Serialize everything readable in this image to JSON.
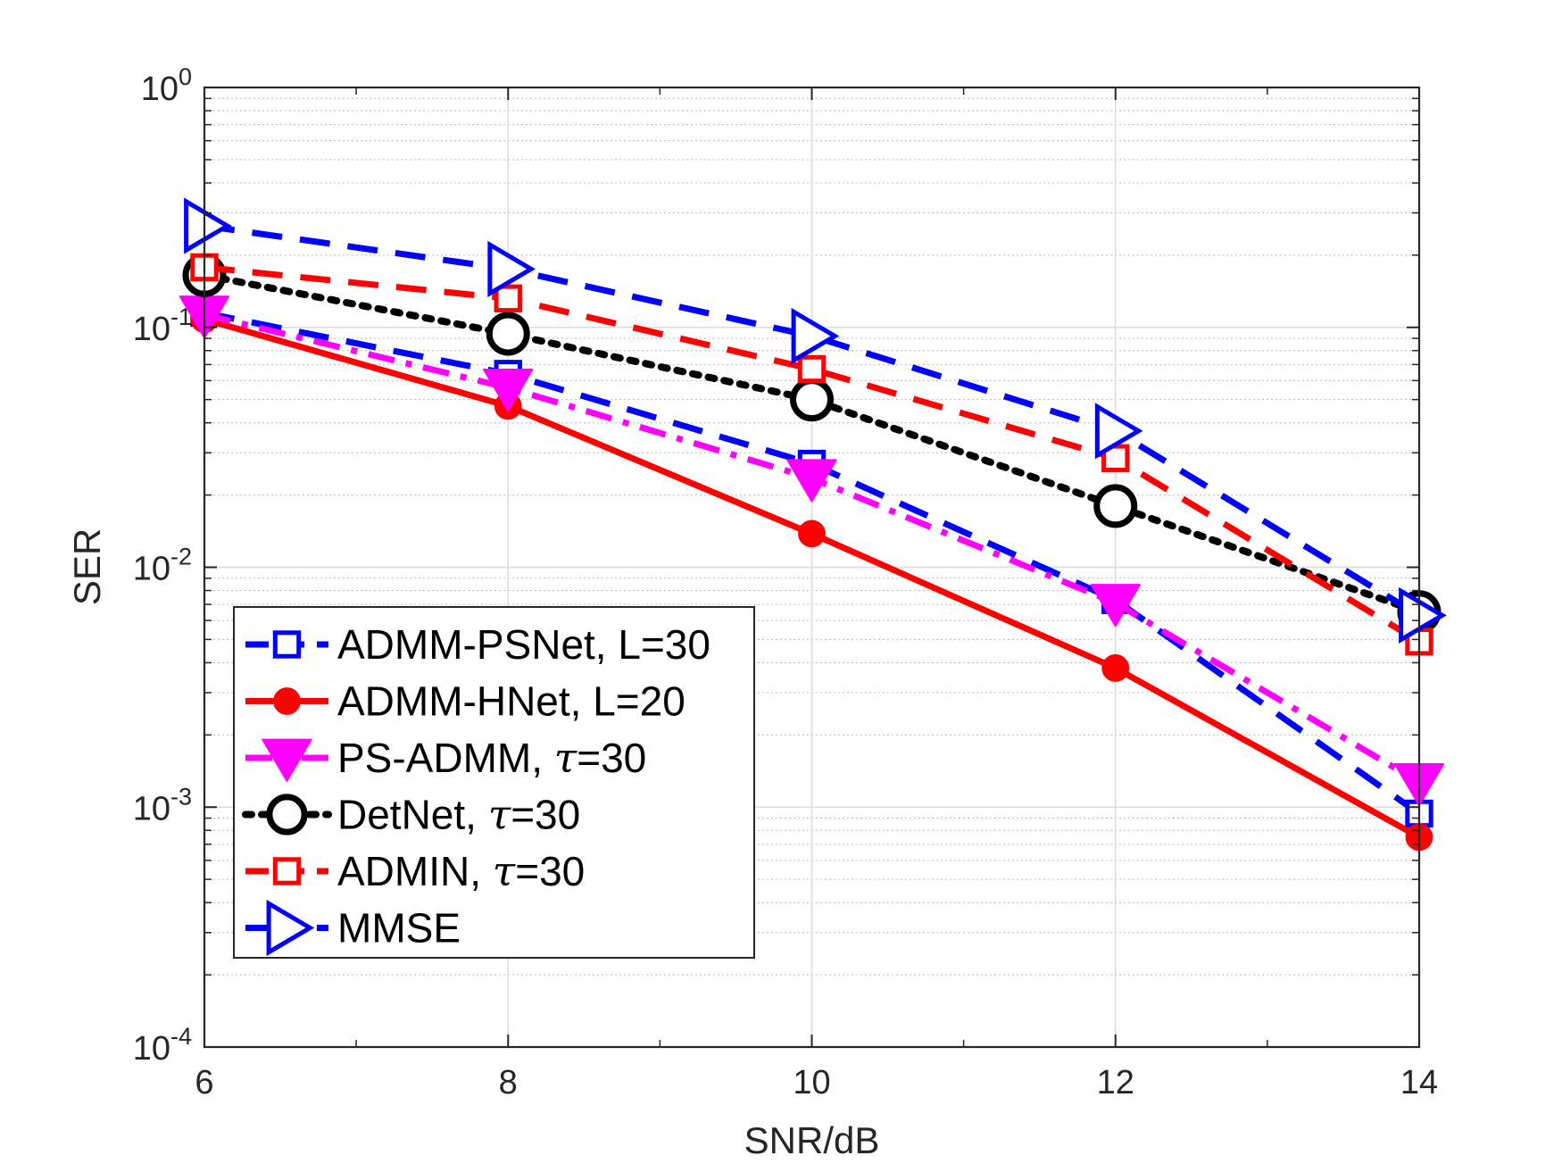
{
  "chart_data": {
    "type": "line",
    "title": "",
    "xlabel": "SNR/dB",
    "ylabel": "SER",
    "xlim": [
      6,
      14
    ],
    "ylim": [
      0.0001,
      1
    ],
    "yscale": "log",
    "grid": true,
    "minor_grid": true,
    "legend_position": "bottom-left",
    "x": [
      6,
      8,
      10,
      12,
      14
    ],
    "x_tick_labels": [
      "6",
      "8",
      "10",
      "12",
      "14"
    ],
    "y_ticks": [
      {
        "value": 1,
        "base": "10",
        "exp": "0"
      },
      {
        "value": 0.1,
        "base": "10",
        "exp": "-1"
      },
      {
        "value": 0.01,
        "base": "10",
        "exp": "-2"
      },
      {
        "value": 0.001,
        "base": "10",
        "exp": "-3"
      },
      {
        "value": 0.0001,
        "base": "10",
        "exp": "-4"
      }
    ],
    "series": [
      {
        "name": "ADMM-PSNet, L=30",
        "label_main": "ADMM-PSNet, L=30",
        "label_sym": "",
        "label_tail": "",
        "color": "#0000FF",
        "dash": "dash",
        "marker": "square-open",
        "values": [
          0.115,
          0.064,
          0.027,
          0.0073,
          0.00094
        ]
      },
      {
        "name": "ADMM-HNet, L=20",
        "label_main": "ADMM-HNet, L=20",
        "label_sym": "",
        "label_tail": "",
        "color": "#FF0000",
        "dash": "solid",
        "marker": "circle-filled",
        "values": [
          0.108,
          0.047,
          0.0138,
          0.0038,
          0.00075
        ]
      },
      {
        "name": "PS-ADMM, τ=30",
        "label_main": "PS-ADMM, ",
        "label_sym": "τ",
        "label_tail": "=30",
        "color": "#FF00FF",
        "dash": "dashdot",
        "marker": "triangle-down-filled",
        "values": [
          0.113,
          0.056,
          0.0235,
          0.0071,
          0.00127
        ]
      },
      {
        "name": "DetNet, τ=30",
        "label_main": "DetNet, ",
        "label_sym": "τ",
        "label_tail": "=30",
        "color": "#000000",
        "dash": "dot",
        "marker": "circle-open",
        "values": [
          0.165,
          0.094,
          0.05,
          0.018,
          0.0065
        ]
      },
      {
        "name": "ADMIN, τ=30",
        "label_main": "ADMIN, ",
        "label_sym": "τ",
        "label_tail": "=30",
        "color": "#FF0000",
        "dash": "dash",
        "marker": "square-open",
        "values": [
          0.178,
          0.132,
          0.067,
          0.0285,
          0.0049
        ]
      },
      {
        "name": "MMSE",
        "label_main": "MMSE",
        "label_sym": "",
        "label_tail": "",
        "color": "#0000FF",
        "dash": "dash",
        "marker": "triangle-right-open",
        "values": [
          0.265,
          0.175,
          0.092,
          0.037,
          0.0063
        ]
      }
    ]
  }
}
